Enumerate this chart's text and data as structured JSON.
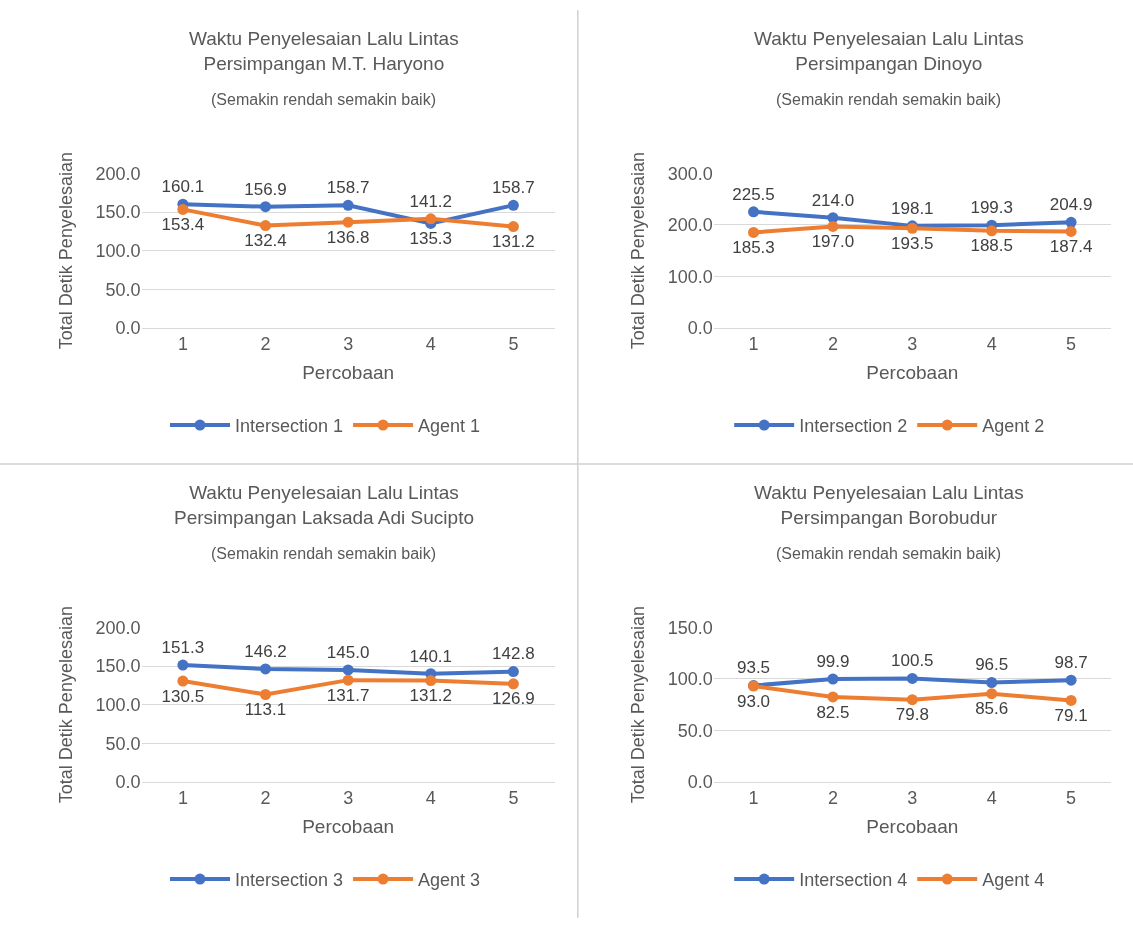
{
  "chart_data": [
    {
      "type": "line",
      "title": "Waktu Penyelesaian Lalu Lintas\nPersimpangan M.T. Haryono",
      "subtitle": "(Semakin rendah semakin baik)",
      "xlabel": "Percobaan",
      "ylabel": "Total Detik Penyelesaian",
      "categories": [
        "1",
        "2",
        "3",
        "4",
        "5"
      ],
      "series": [
        {
          "name": "Intersection 1",
          "color": "#4472c4",
          "values": [
            160.1,
            156.9,
            158.7,
            135.3,
            158.7
          ],
          "value_labels": [
            "160.1",
            "156.9",
            "158.7",
            "135.3",
            "158.7"
          ]
        },
        {
          "name": "Agent 1",
          "color": "#ed7d31",
          "values": [
            153.4,
            132.4,
            136.8,
            141.2,
            131.2
          ],
          "value_labels": [
            "153.4",
            "132.4",
            "136.8",
            "141.2",
            "131.2"
          ]
        }
      ],
      "ylim": [
        0,
        200
      ],
      "yticks": [
        {
          "value": 0,
          "label": "0.0"
        },
        {
          "value": 50,
          "label": "50.0"
        },
        {
          "value": 100,
          "label": "100.0"
        },
        {
          "value": 150,
          "label": "150.0"
        },
        {
          "value": 200,
          "label": "200.0"
        }
      ],
      "grid": "y",
      "legend": "bottom",
      "marker": "circle"
    },
    {
      "type": "line",
      "title": "Waktu Penyelesaian Lalu Lintas\nPersimpangan Dinoyo",
      "subtitle": "(Semakin rendah semakin baik)",
      "xlabel": "Percobaan",
      "ylabel": "Total Detik Penyelesaian",
      "categories": [
        "1",
        "2",
        "3",
        "4",
        "5"
      ],
      "series": [
        {
          "name": "Intersection 2",
          "color": "#4472c4",
          "values": [
            225.5,
            214,
            198.1,
            199.3,
            204.9
          ],
          "value_labels": [
            "225.5",
            "214.0",
            "198.1",
            "199.3",
            "204.9"
          ]
        },
        {
          "name": "Agent 2",
          "color": "#ed7d31",
          "values": [
            185.3,
            197,
            193.5,
            188.5,
            187.4
          ],
          "value_labels": [
            "185.3",
            "197.0",
            "193.5",
            "188.5",
            "187.4"
          ]
        }
      ],
      "ylim": [
        0,
        300
      ],
      "yticks": [
        {
          "value": 0,
          "label": "0.0"
        },
        {
          "value": 100,
          "label": "100.0"
        },
        {
          "value": 200,
          "label": "200.0"
        },
        {
          "value": 300,
          "label": "300.0"
        }
      ],
      "grid": "y",
      "legend": "bottom",
      "marker": "circle"
    },
    {
      "type": "line",
      "title": "Waktu Penyelesaian Lalu Lintas\nPersimpangan Laksada Adi Sucipto",
      "subtitle": "(Semakin rendah semakin baik)",
      "xlabel": "Percobaan",
      "ylabel": "Total Detik Penyelesaian",
      "categories": [
        "1",
        "2",
        "3",
        "4",
        "5"
      ],
      "series": [
        {
          "name": "Intersection 3",
          "color": "#4472c4",
          "values": [
            151.3,
            146.2,
            145,
            140.1,
            142.8
          ],
          "value_labels": [
            "151.3",
            "146.2",
            "145.0",
            "140.1",
            "142.8"
          ]
        },
        {
          "name": "Agent 3",
          "color": "#ed7d31",
          "values": [
            130.5,
            113.1,
            131.7,
            131.2,
            126.9
          ],
          "value_labels": [
            "130.5",
            "113.1",
            "131.7",
            "131.2",
            "126.9"
          ]
        }
      ],
      "ylim": [
        0,
        200
      ],
      "yticks": [
        {
          "value": 0,
          "label": "0.0"
        },
        {
          "value": 50,
          "label": "50.0"
        },
        {
          "value": 100,
          "label": "100.0"
        },
        {
          "value": 150,
          "label": "150.0"
        },
        {
          "value": 200,
          "label": "200.0"
        }
      ],
      "grid": "y",
      "legend": "bottom",
      "marker": "circle"
    },
    {
      "type": "line",
      "title": "Waktu Penyelesaian Lalu Lintas\nPersimpangan Borobudur",
      "subtitle": "(Semakin rendah semakin baik)",
      "xlabel": "Percobaan",
      "ylabel": "Total Detik Penyelesaian",
      "categories": [
        "1",
        "2",
        "3",
        "4",
        "5"
      ],
      "series": [
        {
          "name": "Intersection 4",
          "color": "#4472c4",
          "values": [
            93.5,
            99.9,
            100.5,
            96.5,
            98.7
          ],
          "value_labels": [
            "93.5",
            "99.9",
            "100.5",
            "96.5",
            "98.7"
          ]
        },
        {
          "name": "Agent 4",
          "color": "#ed7d31",
          "values": [
            93,
            82.5,
            79.8,
            85.6,
            79.1
          ],
          "value_labels": [
            "93.0",
            "82.5",
            "79.8",
            "85.6",
            "79.1"
          ]
        }
      ],
      "ylim": [
        0,
        150
      ],
      "yticks": [
        {
          "value": 0,
          "label": "0.0"
        },
        {
          "value": 50,
          "label": "50.0"
        },
        {
          "value": 100,
          "label": "100.0"
        },
        {
          "value": 150,
          "label": "150.0"
        }
      ],
      "grid": "y",
      "legend": "bottom",
      "marker": "circle"
    }
  ]
}
